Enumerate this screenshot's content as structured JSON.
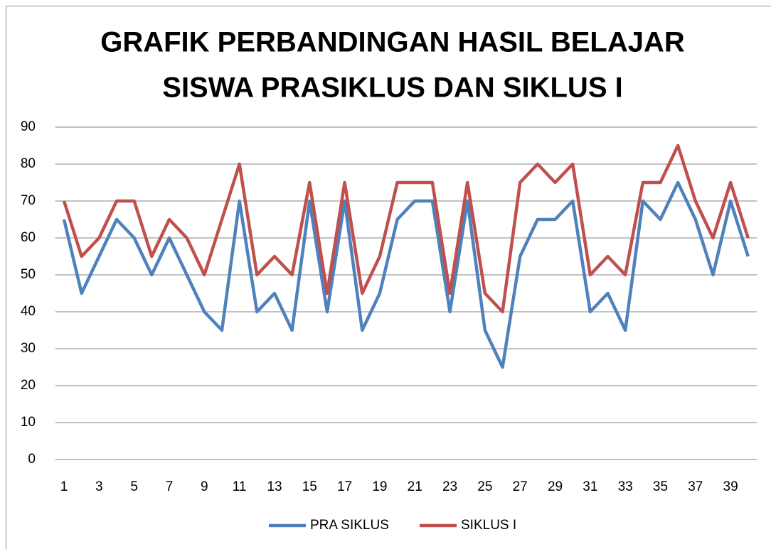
{
  "chart_data": {
    "type": "line",
    "title": [
      "GRAFIK PERBANDINGAN HASIL BELAJAR",
      "SISWA PRASIKLUS DAN SIKLUS I"
    ],
    "categories": [
      1,
      null,
      3,
      null,
      5,
      null,
      7,
      null,
      9,
      null,
      11,
      null,
      13,
      null,
      15,
      null,
      17,
      null,
      19,
      null,
      21,
      null,
      23,
      null,
      25,
      null,
      27,
      null,
      29,
      null,
      31,
      null,
      33,
      null,
      35,
      null,
      37,
      null,
      39,
      null
    ],
    "series": [
      {
        "name": "PRA SIKLUS",
        "color": "#4f81bd",
        "values": [
          65,
          45,
          55,
          65,
          60,
          50,
          60,
          50,
          40,
          35,
          70,
          40,
          45,
          35,
          70,
          40,
          70,
          35,
          45,
          65,
          70,
          70,
          40,
          70,
          35,
          25,
          55,
          65,
          65,
          70,
          40,
          45,
          35,
          70,
          65,
          75,
          65,
          50,
          70,
          55
        ]
      },
      {
        "name": "SIKLUS I",
        "color": "#c0504d",
        "values": [
          70,
          55,
          60,
          70,
          70,
          55,
          65,
          60,
          50,
          65,
          80,
          50,
          55,
          50,
          75,
          45,
          75,
          45,
          55,
          75,
          75,
          75,
          45,
          75,
          45,
          40,
          75,
          80,
          75,
          80,
          50,
          55,
          50,
          75,
          75,
          85,
          70,
          60,
          75,
          60
        ]
      }
    ],
    "ylim": [
      0,
      90
    ],
    "yticks": [
      0,
      10,
      20,
      30,
      40,
      50,
      60,
      70,
      80,
      90
    ],
    "grid": true,
    "legend": "bottom"
  }
}
